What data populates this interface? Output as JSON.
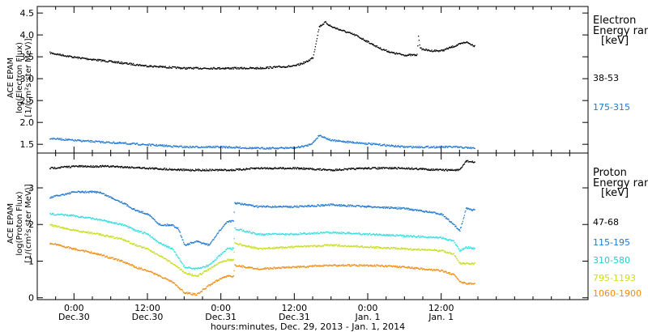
{
  "chart_data": [
    {
      "type": "scatter",
      "panel": "electron",
      "ylabel": [
        "ACE EPAM",
        "log(Electron Flux)",
        "[1/(cm²s ster MeV)]"
      ],
      "ylim": [
        1.3,
        4.65
      ],
      "yticks": [
        1.5,
        2.0,
        2.5,
        3.0,
        3.5,
        4.0,
        4.5
      ],
      "ytick_labels": [
        "1.5",
        "2.0",
        "2.5",
        "3.0",
        "3.5",
        "4.0",
        "4.5"
      ],
      "legend": {
        "title": [
          "Electron",
          "Energy ran",
          "[keV]"
        ],
        "placement": "right"
      },
      "series": [
        {
          "name": "38-53",
          "color": "#000000",
          "x": [
            -4,
            0,
            6,
            12,
            18,
            24,
            30,
            36,
            38,
            39,
            40,
            41,
            42,
            44,
            46,
            48,
            50,
            52,
            54,
            56,
            56.2,
            56.5,
            58,
            60,
            62,
            63,
            64,
            65.5
          ],
          "y": [
            3.6,
            3.5,
            3.4,
            3.3,
            3.25,
            3.25,
            3.25,
            3.3,
            3.4,
            3.5,
            4.2,
            4.3,
            4.2,
            4.1,
            4.0,
            3.85,
            3.7,
            3.6,
            3.55,
            3.55,
            4.0,
            3.7,
            3.65,
            3.65,
            3.75,
            3.8,
            3.85,
            3.75
          ]
        },
        {
          "name": "175-315",
          "color": "#1E78D2",
          "x": [
            -4,
            0,
            6,
            12,
            18,
            24,
            30,
            36,
            38,
            39,
            40,
            42,
            46,
            50,
            54,
            58,
            62,
            65.5
          ],
          "y": [
            1.65,
            1.6,
            1.55,
            1.5,
            1.45,
            1.45,
            1.42,
            1.43,
            1.48,
            1.55,
            1.72,
            1.6,
            1.55,
            1.5,
            1.45,
            1.45,
            1.45,
            1.42
          ]
        }
      ]
    },
    {
      "type": "scatter",
      "panel": "proton",
      "ylabel": [
        "ACE EPAM",
        "log(Proton Flux)",
        "[1/(cm²s ster MeV)]"
      ],
      "ylim": [
        -0.05,
        3.95
      ],
      "yticks": [
        0,
        1,
        2,
        3
      ],
      "ytick_labels": [
        "0",
        "1",
        "2",
        "3"
      ],
      "legend": {
        "title": [
          "Proton",
          "Energy ran",
          "[keV]"
        ],
        "placement": "right"
      },
      "series": [
        {
          "name": "47-68",
          "color": "#000000",
          "x": [
            -4,
            0,
            6,
            12,
            18,
            24,
            26,
            30,
            36,
            42,
            48,
            54,
            60,
            63,
            64,
            65.5
          ],
          "y": [
            3.55,
            3.6,
            3.6,
            3.55,
            3.5,
            3.5,
            3.5,
            3.55,
            3.55,
            3.5,
            3.55,
            3.55,
            3.5,
            3.5,
            3.75,
            3.7
          ]
        },
        {
          "name": "115-195",
          "color": "#1E78D2",
          "x": [
            -4,
            0,
            4,
            8,
            10,
            12,
            14,
            16,
            17,
            18,
            20,
            22,
            24,
            25,
            26,
            26.2,
            30,
            36,
            42,
            48,
            54,
            60,
            62,
            63,
            64,
            65.5
          ],
          "y": [
            2.75,
            2.9,
            2.9,
            2.6,
            2.4,
            2.3,
            2.0,
            2.0,
            1.9,
            1.45,
            1.55,
            1.45,
            1.9,
            2.1,
            2.1,
            2.6,
            2.5,
            2.5,
            2.55,
            2.5,
            2.45,
            2.3,
            2.0,
            1.85,
            2.45,
            2.4
          ]
        },
        {
          "name": "310-580",
          "color": "#33DDDD",
          "x": [
            -4,
            0,
            4,
            8,
            10,
            12,
            14,
            16,
            18,
            20,
            22,
            24,
            25,
            26,
            26.2,
            30,
            36,
            42,
            48,
            54,
            60,
            62,
            63,
            64,
            65.5
          ],
          "y": [
            2.3,
            2.25,
            2.15,
            2.0,
            1.85,
            1.75,
            1.5,
            1.35,
            0.85,
            0.8,
            0.9,
            1.2,
            1.35,
            1.35,
            1.9,
            1.75,
            1.75,
            1.8,
            1.75,
            1.7,
            1.65,
            1.55,
            1.3,
            1.4,
            1.35
          ]
        },
        {
          "name": "795-1193",
          "color": "#C8DC1E",
          "x": [
            -4,
            0,
            4,
            8,
            10,
            12,
            14,
            16,
            18,
            20,
            22,
            24,
            25,
            26,
            26.2,
            30,
            36,
            42,
            48,
            54,
            60,
            62,
            63,
            64,
            65.5
          ],
          "y": [
            2.0,
            1.85,
            1.75,
            1.6,
            1.45,
            1.35,
            1.15,
            0.95,
            0.7,
            0.6,
            0.8,
            1.0,
            1.05,
            1.05,
            1.5,
            1.35,
            1.4,
            1.45,
            1.4,
            1.35,
            1.3,
            1.2,
            0.95,
            0.95,
            0.95
          ]
        },
        {
          "name": "1060-1900",
          "color": "#F08C14",
          "x": [
            -4,
            0,
            4,
            8,
            10,
            12,
            14,
            16,
            18,
            20,
            22,
            24,
            25,
            26,
            26.2,
            30,
            36,
            42,
            48,
            54,
            60,
            62,
            63,
            64,
            65.5
          ],
          "y": [
            1.5,
            1.35,
            1.2,
            1.0,
            0.85,
            0.75,
            0.6,
            0.45,
            0.15,
            0.1,
            0.35,
            0.55,
            0.6,
            0.6,
            0.9,
            0.8,
            0.85,
            0.9,
            0.9,
            0.85,
            0.75,
            0.65,
            0.45,
            0.4,
            0.4
          ]
        }
      ]
    }
  ],
  "x_axis": {
    "xlim": [
      -6,
      84
    ],
    "ticks": [
      0,
      12,
      24,
      36,
      48,
      60
    ],
    "tick_labels": [
      [
        "0:00",
        "Dec.30"
      ],
      [
        "12:00",
        "Dec.30"
      ],
      [
        "0:00",
        "Dec.31"
      ],
      [
        "12:00",
        "Dec.31"
      ],
      [
        "0:00",
        "Jan. 1"
      ],
      [
        "12:00",
        "Jan. 1"
      ]
    ],
    "minor_ticks": [
      -3,
      3,
      6,
      9,
      15,
      18,
      21,
      27,
      30,
      33,
      39,
      42,
      45,
      51,
      54,
      57,
      63,
      66,
      69,
      72,
      75,
      78,
      81
    ],
    "label": "hours:minutes, Dec. 29, 2013 - Jan.  1, 2014"
  }
}
